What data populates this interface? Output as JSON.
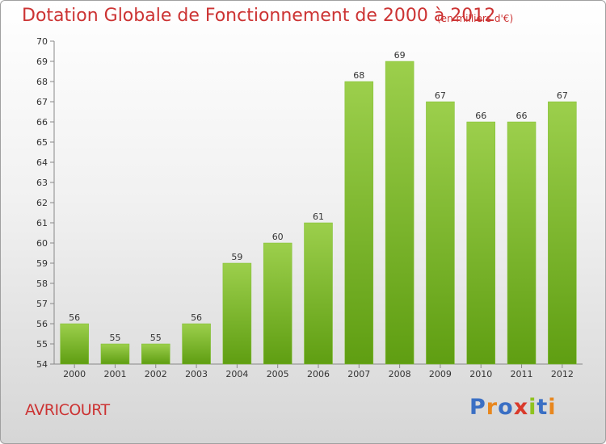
{
  "header": {
    "title": "Dotation Globale de Fonctionnement de 2000 à 2012",
    "subtitle": "(en milliers d'€)"
  },
  "footer": {
    "town": "AVRICOURT",
    "logo_text": "Proxiti",
    "logo_colors": [
      "#3a6fc4",
      "#e8871e",
      "#3a6fc4",
      "#d93a2b",
      "#8fc31f",
      "#3a6fc4",
      "#e8871e"
    ]
  },
  "chart_data": {
    "type": "bar",
    "title": "Dotation Globale de Fonctionnement de 2000 à 2012",
    "subtitle": "(en milliers d'€)",
    "xlabel": "",
    "ylabel": "",
    "categories": [
      "2000",
      "2001",
      "2002",
      "2003",
      "2004",
      "2005",
      "2006",
      "2007",
      "2008",
      "2009",
      "2010",
      "2011",
      "2012"
    ],
    "values": [
      56,
      55,
      55,
      56,
      59,
      60,
      61,
      68,
      69,
      67,
      66,
      66,
      67
    ],
    "ylim": [
      54,
      70
    ],
    "yticks": [
      54,
      55,
      56,
      57,
      58,
      59,
      60,
      61,
      62,
      63,
      64,
      65,
      66,
      67,
      68,
      69,
      70
    ],
    "bar_color": "#8cc63f",
    "grid": false,
    "legend": "none"
  }
}
